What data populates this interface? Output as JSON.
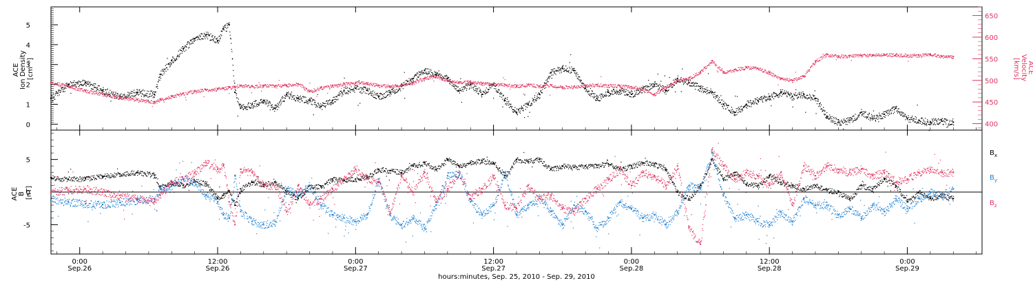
{
  "colors": {
    "black": "#000000",
    "pink": "#e0325f",
    "blue": "#1a7fd4"
  },
  "top_panel": {
    "ylabel_lines": [
      "ACE",
      "Ion Density",
      "[cm⁻³]"
    ],
    "ylabel_right_lines": [
      "ACE",
      "Velocity",
      "[km/s]"
    ]
  },
  "bottom_panel": {
    "ylabel_lines": [
      "ACE",
      "B",
      "[nT]"
    ],
    "legend": [
      {
        "label": "Bx",
        "base": "B",
        "sub": "x",
        "color": "#000000"
      },
      {
        "label": "By",
        "base": "B",
        "sub": "y",
        "color": "#1a7fd4"
      },
      {
        "label": "Bz",
        "base": "B",
        "sub": "z",
        "color": "#e0325f"
      }
    ]
  },
  "x_ticks": [
    {
      "time": "0:00",
      "date": "Sep.26",
      "hours": 0
    },
    {
      "time": "12:00",
      "date": "Sep.26",
      "hours": 12
    },
    {
      "time": "0:00",
      "date": "Sep.27",
      "hours": 24
    },
    {
      "time": "12:00",
      "date": "Sep.27",
      "hours": 36
    },
    {
      "time": "0:00",
      "date": "Sep.28",
      "hours": 48
    },
    {
      "time": "12:00",
      "date": "Sep.28",
      "hours": 60
    },
    {
      "time": "0:00",
      "date": "Sep.29",
      "hours": 72
    }
  ],
  "x_axis_label": "hours:minutes, Sep. 25, 2010 - Sep. 29, 2010",
  "chart_data": [
    {
      "type": "scatter",
      "title": "",
      "xlabel": "hours:minutes, Sep. 25, 2010 - Sep. 29, 2010",
      "xlim_hours_from_sep26_0000": [
        -2.5,
        78.5
      ],
      "ylabel": "ACE Ion Density [cm⁻³]",
      "ylim": [
        -0.3,
        5.9
      ],
      "yticks": [
        0,
        1,
        2,
        3,
        4,
        5
      ],
      "ylabel_right": "ACE Velocity [km/s]",
      "ylim_right": [
        385,
        670
      ],
      "yticks_right": [
        400,
        450,
        500,
        550,
        600,
        650
      ],
      "series": [
        {
          "name": "Ion Density",
          "axis": "left",
          "color": "#000000",
          "x_hours": [
            -2.5,
            -1,
            0.5,
            2,
            3.5,
            5,
            6.5,
            7,
            8,
            9,
            10,
            11,
            12,
            12.5,
            13,
            13.5,
            14,
            15,
            16,
            17,
            18,
            19,
            20,
            21,
            22,
            23,
            24,
            25,
            26,
            27,
            28,
            29,
            30,
            31,
            32,
            33,
            34,
            35,
            36,
            37,
            38,
            39,
            40,
            41,
            42,
            43,
            44,
            45,
            46,
            47,
            48,
            49,
            50,
            51,
            52,
            53,
            54,
            55,
            56,
            57,
            58,
            59,
            60,
            61,
            62,
            63,
            64,
            65,
            66,
            67,
            68,
            69,
            70,
            71,
            72,
            73,
            74,
            75,
            76
          ],
          "values": [
            1.3,
            2.0,
            2.1,
            1.7,
            1.4,
            1.6,
            1.5,
            2.5,
            3.2,
            3.8,
            4.3,
            4.5,
            4.2,
            4.8,
            5.0,
            1.6,
            0.8,
            1.0,
            1.2,
            0.8,
            1.5,
            1.3,
            1.2,
            0.9,
            1.2,
            1.7,
            1.8,
            1.7,
            1.4,
            1.6,
            1.9,
            2.3,
            2.7,
            2.5,
            2.3,
            1.7,
            2.0,
            1.5,
            2.0,
            1.2,
            0.6,
            1.0,
            1.5,
            2.6,
            2.8,
            2.7,
            1.8,
            1.3,
            1.6,
            1.7,
            1.5,
            1.8,
            2.0,
            1.7,
            2.3,
            2.1,
            1.8,
            1.6,
            1.0,
            0.6,
            1.0,
            1.2,
            1.4,
            1.6,
            1.4,
            1.5,
            1.3,
            0.4,
            0.1,
            0.2,
            0.6,
            0.3,
            0.5,
            0.8,
            0.3,
            0.2,
            0.1,
            0.15,
            0.1
          ]
        },
        {
          "name": "Velocity",
          "axis": "right",
          "color": "#e0325f",
          "x_hours": [
            -2.5,
            -1,
            0.5,
            2,
            3.5,
            5,
            6.5,
            7,
            8,
            9,
            10,
            11,
            12,
            12.5,
            13,
            13.5,
            14,
            15,
            16,
            17,
            18,
            19,
            20,
            21,
            22,
            23,
            24,
            25,
            26,
            27,
            28,
            29,
            30,
            31,
            32,
            33,
            34,
            35,
            36,
            37,
            38,
            39,
            40,
            41,
            42,
            43,
            44,
            45,
            46,
            47,
            48,
            49,
            50,
            51,
            52,
            53,
            54,
            55,
            56,
            57,
            58,
            59,
            60,
            61,
            62,
            63,
            64,
            65,
            66,
            67,
            68,
            69,
            70,
            71,
            72,
            73,
            74,
            75,
            76
          ],
          "values": [
            495,
            487,
            476,
            468,
            460,
            456,
            450,
            456,
            463,
            470,
            475,
            478,
            480,
            482,
            484,
            486,
            488,
            486,
            488,
            487,
            489,
            492,
            475,
            483,
            488,
            492,
            494,
            494,
            488,
            487,
            490,
            495,
            505,
            510,
            500,
            495,
            497,
            493,
            492,
            490,
            487,
            490,
            487,
            489,
            485,
            486,
            488,
            490,
            488,
            487,
            485,
            480,
            468,
            485,
            500,
            505,
            520,
            545,
            520,
            525,
            530,
            528,
            518,
            505,
            500,
            510,
            545,
            560,
            556,
            557,
            558,
            559,
            560,
            559,
            558,
            558,
            561,
            556,
            555
          ]
        }
      ]
    },
    {
      "type": "scatter",
      "title": "",
      "xlabel": "hours:minutes, Sep. 25, 2010 - Sep. 29, 2010",
      "xlim_hours_from_sep26_0000": [
        -2.5,
        78.5
      ],
      "ylabel": "ACE B [nT]",
      "ylim": [
        -9.5,
        9.5
      ],
      "yticks": [
        -5,
        0,
        5
      ],
      "zero_line": true,
      "series": [
        {
          "name": "Bx",
          "color": "#000000",
          "x_hours": [
            -2.5,
            -1,
            0.5,
            2,
            3.5,
            5,
            6.5,
            7,
            8,
            9,
            10,
            11,
            12,
            12.5,
            13,
            13.5,
            14,
            15,
            16,
            17,
            18,
            19,
            20,
            21,
            22,
            23,
            24,
            25,
            26,
            27,
            28,
            29,
            30,
            31,
            32,
            33,
            34,
            35,
            36,
            37,
            38,
            39,
            40,
            41,
            42,
            43,
            44,
            45,
            46,
            47,
            48,
            49,
            50,
            51,
            52,
            53,
            54,
            55,
            56,
            57,
            58,
            59,
            60,
            61,
            62,
            63,
            64,
            65,
            66,
            67,
            68,
            69,
            70,
            71,
            72,
            73,
            74,
            75,
            76
          ],
          "values": [
            2.2,
            2.0,
            2.1,
            2.4,
            2.8,
            3.0,
            2.6,
            0.8,
            1.5,
            1.0,
            1.7,
            1.3,
            -1.0,
            -0.5,
            0.2,
            -2.0,
            0.5,
            1.5,
            1.2,
            1.5,
            0.0,
            -1.0,
            1.0,
            0.8,
            2.0,
            1.8,
            2.0,
            2.3,
            3.5,
            3.3,
            3.0,
            4.0,
            4.5,
            3.5,
            5.0,
            4.0,
            4.5,
            4.8,
            4.5,
            2.5,
            5.0,
            4.7,
            5.0,
            3.5,
            4.0,
            3.8,
            4.0,
            4.1,
            4.3,
            3.5,
            4.0,
            4.5,
            4.3,
            3.5,
            0.0,
            -1.0,
            1.0,
            5.0,
            2.0,
            3.0,
            1.2,
            1.0,
            2.5,
            1.5,
            1.0,
            0.5,
            1.0,
            0.3,
            0.0,
            -1.0,
            1.0,
            0.5,
            2.0,
            1.0,
            -1.5,
            0.0,
            -1.0,
            -0.5,
            -1.0
          ]
        },
        {
          "name": "By",
          "color": "#1a7fd4",
          "x_hours": [
            -2.5,
            -1,
            0.5,
            2,
            3.5,
            5,
            6.5,
            7,
            8,
            9,
            10,
            11,
            12,
            12.5,
            13,
            13.5,
            14,
            15,
            16,
            17,
            18,
            19,
            20,
            21,
            22,
            23,
            24,
            25,
            26,
            27,
            28,
            29,
            30,
            31,
            32,
            33,
            34,
            35,
            36,
            37,
            38,
            39,
            40,
            41,
            42,
            43,
            44,
            45,
            46,
            47,
            48,
            49,
            50,
            51,
            52,
            53,
            54,
            55,
            56,
            57,
            58,
            59,
            60,
            61,
            62,
            63,
            64,
            65,
            66,
            67,
            68,
            69,
            70,
            71,
            72,
            73,
            74,
            75,
            76
          ],
          "values": [
            -1.2,
            -1.5,
            -1.8,
            -1.9,
            -1.6,
            -1.3,
            -1.0,
            0.5,
            1.0,
            2.0,
            1.5,
            -0.5,
            -1.5,
            -3.5,
            -4.0,
            2.5,
            -3.0,
            -4.5,
            -5.0,
            -4.5,
            0.5,
            -0.5,
            1.0,
            -2.0,
            -3.5,
            -4.0,
            -4.5,
            -3.5,
            2.0,
            -3.5,
            -5.0,
            -4.0,
            -5.5,
            -2.0,
            2.5,
            3.0,
            -1.5,
            -3.5,
            -2.0,
            3.0,
            -3.5,
            -2.0,
            -1.0,
            -3.0,
            -5.0,
            -2.0,
            -3.0,
            -5.5,
            -4.0,
            -1.5,
            -2.5,
            -4.0,
            -3.5,
            -5.0,
            -3.0,
            1.0,
            0.5,
            6.0,
            -0.5,
            -4.0,
            -3.5,
            -4.5,
            -5.0,
            -3.0,
            -4.5,
            -1.0,
            -2.0,
            -2.0,
            -3.5,
            -2.5,
            -4.0,
            -2.0,
            -3.0,
            -1.0,
            -2.5,
            -1.0,
            0.0,
            -0.5,
            0.5
          ]
        },
        {
          "name": "Bz",
          "color": "#e0325f",
          "x_hours": [
            -2.5,
            -1,
            0.5,
            2,
            3.5,
            5,
            6.5,
            7,
            8,
            9,
            10,
            11,
            12,
            12.5,
            13,
            13.5,
            14,
            15,
            16,
            17,
            18,
            19,
            20,
            21,
            22,
            23,
            24,
            25,
            26,
            27,
            28,
            29,
            30,
            31,
            32,
            33,
            34,
            35,
            36,
            37,
            38,
            39,
            40,
            41,
            42,
            43,
            44,
            45,
            46,
            47,
            48,
            49,
            50,
            51,
            52,
            53,
            54,
            55,
            56,
            57,
            58,
            59,
            60,
            61,
            62,
            63,
            64,
            65,
            66,
            67,
            68,
            69,
            70,
            71,
            72,
            73,
            74,
            75,
            76
          ],
          "values": [
            0.0,
            0.3,
            0.5,
            0.0,
            -0.5,
            -1.0,
            -1.5,
            -0.5,
            1.5,
            2.0,
            3.0,
            4.5,
            3.5,
            4.0,
            -1.5,
            -5.0,
            3.5,
            3.0,
            1.0,
            1.0,
            -3.0,
            1.0,
            -2.0,
            -1.0,
            0.5,
            2.0,
            3.5,
            2.0,
            1.5,
            -3.0,
            2.5,
            0.0,
            3.0,
            -1.5,
            0.5,
            3.0,
            -1.0,
            0.5,
            2.5,
            -2.0,
            -2.5,
            1.0,
            -1.0,
            -0.5,
            -2.5,
            -3.0,
            -1.0,
            0.5,
            2.0,
            3.5,
            1.0,
            3.0,
            2.5,
            1.0,
            4.0,
            -5.5,
            -8.0,
            6.5,
            4.0,
            2.0,
            3.0,
            2.5,
            1.0,
            3.0,
            -2.0,
            4.0,
            2.5,
            4.0,
            3.5,
            3.0,
            3.5,
            2.5,
            3.0,
            1.5,
            2.0,
            3.0,
            3.5,
            3.0,
            3.0
          ]
        }
      ]
    }
  ]
}
